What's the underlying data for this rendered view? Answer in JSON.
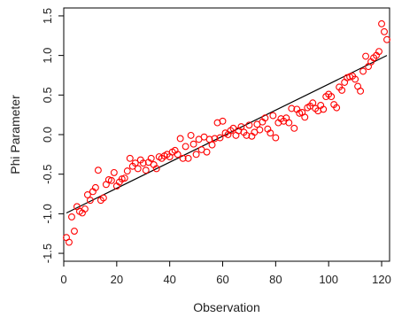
{
  "chart_data": {
    "type": "scatter",
    "title": "",
    "xlabel": "Observation",
    "ylabel": "Phi Parameter",
    "xlim": [
      0,
      123
    ],
    "ylim": [
      -1.6,
      1.6
    ],
    "x_ticks": [
      0,
      20,
      40,
      60,
      80,
      100,
      120
    ],
    "y_ticks": [
      -1.5,
      -1.0,
      -0.5,
      0.0,
      0.5,
      1.0,
      1.5
    ],
    "x_tick_labels": [
      "0",
      "20",
      "40",
      "60",
      "80",
      "100",
      "120"
    ],
    "y_tick_labels": [
      "-1.5",
      "-1.0",
      "-0.5",
      "0.0",
      "0.5",
      "1.0",
      "1.5"
    ],
    "grid": false,
    "marker": "open-circle",
    "point_color": "#ff0000",
    "line_color": "#000000",
    "series": [
      {
        "values": [
          -1.3,
          -1.36,
          -1.04,
          -1.22,
          -0.91,
          -0.97,
          -0.99,
          -0.94,
          -0.76,
          -0.83,
          -0.72,
          -0.67,
          -0.45,
          -0.83,
          -0.8,
          -0.63,
          -0.57,
          -0.58,
          -0.48,
          -0.65,
          -0.6,
          -0.56,
          -0.55,
          -0.46,
          -0.3,
          -0.4,
          -0.36,
          -0.43,
          -0.32,
          -0.36,
          -0.45,
          -0.35,
          -0.3,
          -0.38,
          -0.43,
          -0.28,
          -0.3,
          -0.27,
          -0.25,
          -0.28,
          -0.22,
          -0.2,
          -0.25,
          -0.05,
          -0.3,
          -0.15,
          -0.3,
          -0.01,
          -0.12,
          -0.25,
          -0.06,
          -0.19,
          -0.03,
          -0.22,
          -0.06,
          -0.13,
          -0.05,
          0.15,
          -0.04,
          0.17,
          0.02,
          0.0,
          0.05,
          0.08,
          -0.01,
          0.05,
          0.1,
          0.03,
          -0.01,
          0.12,
          -0.02,
          0.03,
          0.13,
          0.06,
          0.16,
          0.21,
          0.07,
          0.02,
          0.24,
          -0.04,
          0.15,
          0.2,
          0.17,
          0.21,
          0.15,
          0.33,
          0.08,
          0.32,
          0.27,
          0.28,
          0.22,
          0.34,
          0.36,
          0.4,
          0.33,
          0.3,
          0.37,
          0.32,
          0.48,
          0.51,
          0.48,
          0.38,
          0.34,
          0.6,
          0.56,
          0.66,
          0.72,
          0.73,
          0.74,
          0.7,
          0.61,
          0.55,
          0.8,
          0.99,
          0.86,
          0.92,
          0.97,
          1.0,
          1.05,
          1.4,
          1.3,
          1.2
        ]
      }
    ],
    "fit_line": {
      "x": [
        1,
        122
      ],
      "y": [
        -0.99,
        1.0
      ]
    }
  }
}
